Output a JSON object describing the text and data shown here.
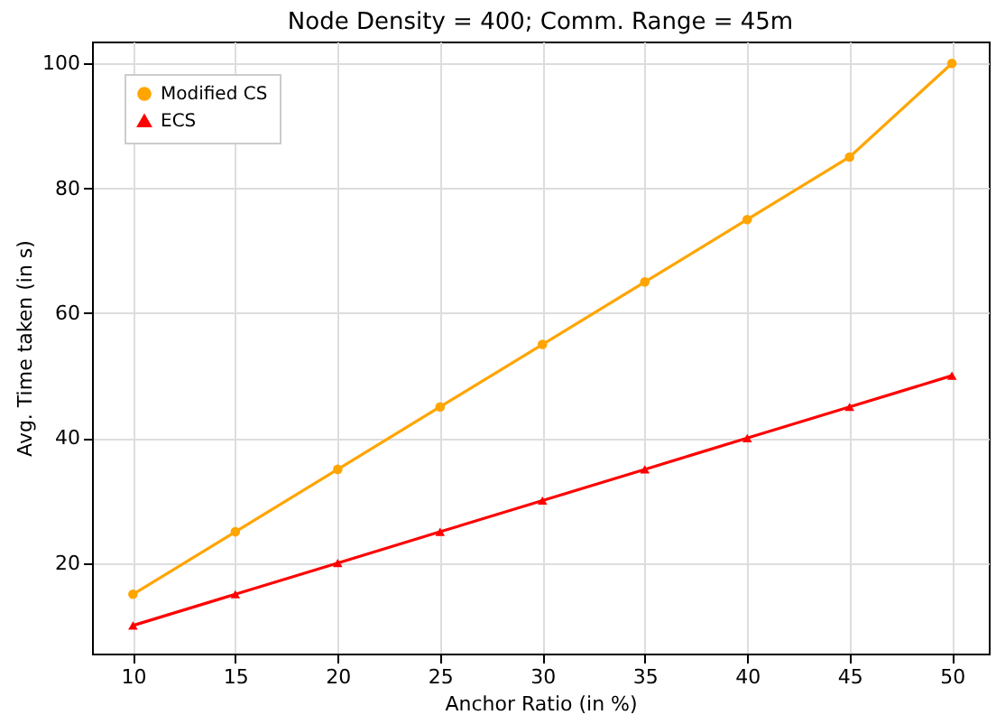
{
  "chart_data": {
    "type": "line",
    "title": "Node Density = 400; Comm. Range = 45m",
    "xlabel": "Anchor Ratio (in %)",
    "ylabel": "Avg. Time taken (in s)",
    "x": [
      10,
      15,
      20,
      25,
      30,
      35,
      40,
      45,
      50
    ],
    "series": [
      {
        "name": "Modified CS",
        "color": "#ffa500",
        "marker": "circle",
        "values": [
          15,
          25,
          35,
          45,
          55,
          65,
          75,
          85,
          100
        ]
      },
      {
        "name": "ECS",
        "color": "#ff0000",
        "marker": "triangle",
        "values": [
          10,
          15,
          20,
          25,
          30,
          35,
          40,
          45,
          50
        ]
      }
    ],
    "xlim": [
      8,
      51.8
    ],
    "xticks": [
      10,
      15,
      20,
      25,
      30,
      35,
      40,
      45,
      50
    ],
    "ylim": [
      5.5,
      103.5
    ],
    "yticks": [
      20,
      40,
      60,
      80,
      100
    ],
    "grid": true,
    "legend": "top left"
  }
}
